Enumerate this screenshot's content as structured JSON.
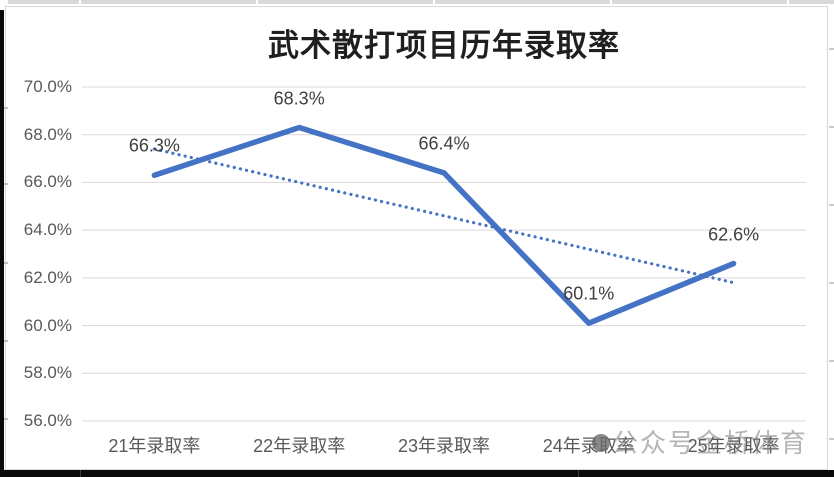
{
  "frame": {
    "watermark": {
      "text": "公众号金桥体育"
    }
  },
  "chart_data": {
    "type": "line",
    "title": "武术散打项目历年录取率",
    "categories": [
      "21年录取率",
      "22年录取率",
      "23年录取率",
      "24年录取率",
      "25年录取率"
    ],
    "series": [
      {
        "name": "录取率",
        "role": "data",
        "line_style": "solid",
        "color": "#4472C4",
        "values": [
          66.3,
          68.3,
          66.4,
          60.1,
          62.6
        ]
      },
      {
        "name": "trendline",
        "role": "linear-trendline",
        "line_style": "dotted",
        "color": "#4472C4",
        "trend_start": 67.4,
        "trend_end": 61.8
      }
    ],
    "data_labels": [
      "66.3%",
      "68.3%",
      "66.4%",
      "60.1%",
      "62.6%"
    ],
    "xlabel": "",
    "ylabel": "",
    "ylim": [
      56,
      70
    ],
    "ytick_values": [
      70,
      68,
      66,
      64,
      62,
      60,
      58,
      56
    ],
    "ytick_labels": [
      "70.0%",
      "68.0%",
      "66.0%",
      "64.0%",
      "62.0%",
      "60.0%",
      "58.0%",
      "56.0%"
    ],
    "grid": true,
    "legend": "none",
    "gridline_color": "#D9D9D9",
    "axis_text_color": "#595959",
    "label_text_color": "#404040",
    "title_color": "#1F1F1F",
    "background": "#FFFFFF"
  }
}
